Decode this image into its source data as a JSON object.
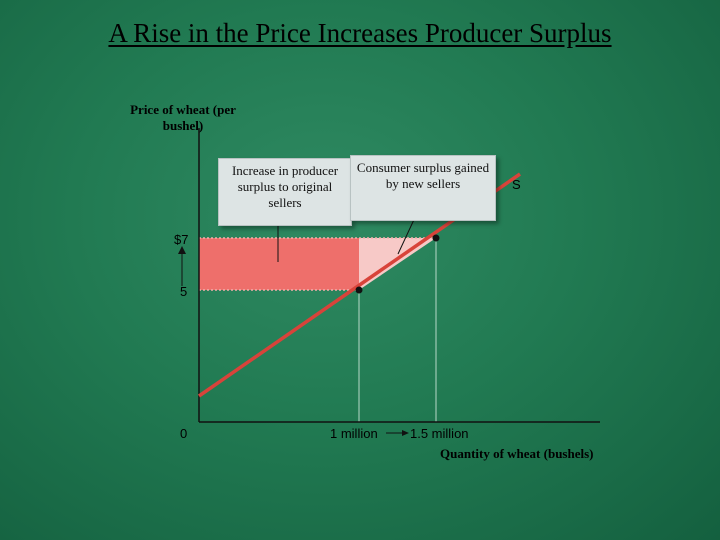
{
  "title": "A Rise in the Price Increases Producer Surplus",
  "axis": {
    "y_label": "Price of wheat (per bushel)",
    "x_label": "Quantity of wheat (bushels)"
  },
  "callouts": {
    "original_sellers": "Increase in producer surplus to original sellers",
    "new_sellers": "Consumer surplus gained by new sellers"
  },
  "curve_label": "S",
  "ticks": {
    "y_high": "$7",
    "y_low": "5",
    "origin": "0",
    "x_first": "1 million",
    "x_second": "1.5 million"
  },
  "colors": {
    "background": "#217a52",
    "supply_line": "#d8433a",
    "producer_surplus_area": "#ee6f6b",
    "new_sellers_area": "#f7c9c7"
  },
  "chart_data": {
    "type": "line",
    "xlabel": "Quantity of wheat (bushels)",
    "ylabel": "Price of wheat (per bushel)",
    "x_ticks": [
      "1 million",
      "1.5 million"
    ],
    "y_ticks": [
      "5",
      "$7"
    ],
    "series": [
      {
        "name": "S",
        "points": [
          [
            1000000,
            5
          ],
          [
            1500000,
            7
          ]
        ]
      }
    ],
    "regions": [
      {
        "label": "Increase in producer surplus to original sellers",
        "price_range": [
          5,
          7
        ],
        "quantity_range": [
          0,
          1000000
        ]
      },
      {
        "label": "Consumer surplus gained by new sellers",
        "price_range": [
          5,
          7
        ],
        "quantity_range": [
          1000000,
          1500000
        ]
      }
    ]
  }
}
